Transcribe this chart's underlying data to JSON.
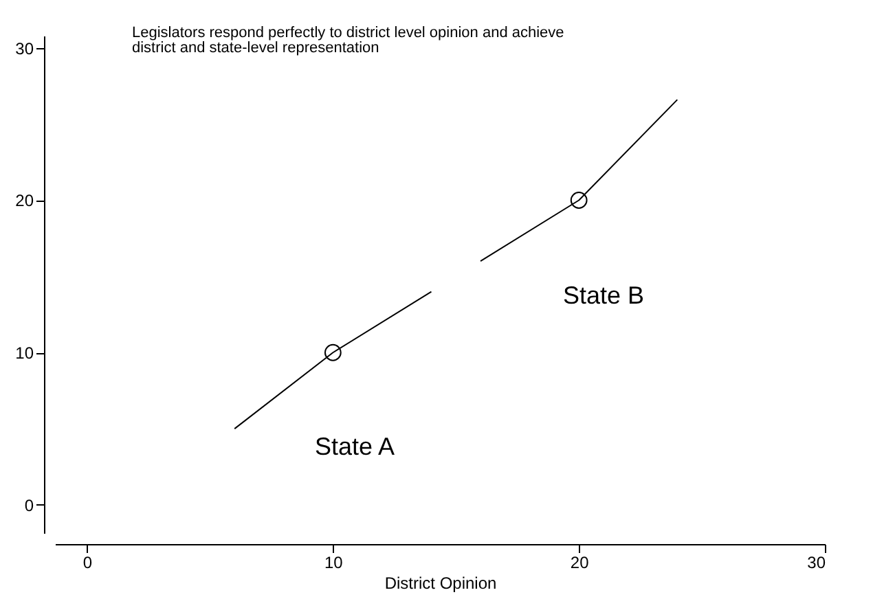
{
  "chart_data": {
    "type": "line",
    "title": "Legislators respond perfectly to district level opinion and achieve\ndistrict and state-level representation",
    "xlabel": "District Opinion",
    "xlim": [
      -1.3,
      30
    ],
    "ylim": [
      -1.85,
      30.8
    ],
    "xticks": [
      0,
      10,
      20,
      30
    ],
    "yticks": [
      0,
      10,
      20,
      30
    ],
    "grid": false,
    "line_style": "solid",
    "series": [
      {
        "type": "line",
        "color": "#000000",
        "x": [
          6,
          10,
          14
        ],
        "values": [
          5,
          10,
          14
        ]
      },
      {
        "type": "line",
        "color": "#000000",
        "x": [
          16,
          20,
          24
        ],
        "values": [
          16,
          20,
          26.6
        ]
      },
      {
        "type": "scatter",
        "color": "#000000",
        "marker": "circle",
        "x": [
          10,
          20
        ],
        "values": [
          10,
          20
        ]
      }
    ],
    "annotations": [
      "State A",
      "State B"
    ]
  }
}
